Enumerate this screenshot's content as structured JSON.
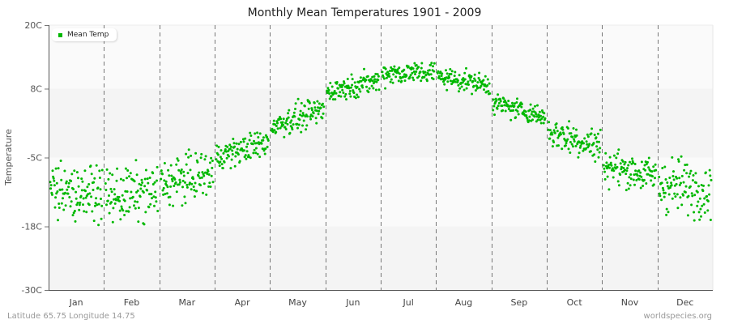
{
  "title": "Monthly Mean Temperatures 1901 - 2009",
  "legend": {
    "label": "Mean Temp",
    "color": "#00b800"
  },
  "footer": {
    "left": "Latitude 65.75 Longitude 14.75",
    "right": "worldspecies.org"
  },
  "chart_data": {
    "type": "scatter",
    "title": "Monthly Mean Temperatures 1901 - 2009",
    "xlabel": "",
    "ylabel": "Temperature",
    "ylim": [
      -30,
      20
    ],
    "yticks": [
      "20C",
      "8C",
      "-5C",
      "-18C",
      "-30C"
    ],
    "ytick_values": [
      20,
      8,
      -5,
      -18,
      -30
    ],
    "categories": [
      "Jan",
      "Feb",
      "Mar",
      "Apr",
      "May",
      "Jun",
      "Jul",
      "Aug",
      "Sep",
      "Oct",
      "Nov",
      "Dec"
    ],
    "grid": {
      "vertical_dashed_month_dividers": true,
      "horizontal_bands": true
    },
    "legend_position": "top-left",
    "series": [
      {
        "name": "Mean Temp",
        "color": "#00b800",
        "points_per_month": 109,
        "approx_ranges": [
          {
            "month": "Jan",
            "min": -19.5,
            "max": -5.0,
            "mean": -11.5
          },
          {
            "month": "Feb",
            "min": -21.5,
            "max": -5.5,
            "mean": -12.0
          },
          {
            "month": "Mar",
            "min": -17.0,
            "max": -3.5,
            "mean": -9.0
          },
          {
            "month": "Apr",
            "min": -7.0,
            "max": 1.0,
            "mean": -3.5
          },
          {
            "month": "May",
            "min": -1.5,
            "max": 6.5,
            "mean": 2.5
          },
          {
            "month": "Jun",
            "min": 6.0,
            "max": 12.5,
            "mean": 8.5
          },
          {
            "month": "Jul",
            "min": 8.0,
            "max": 14.5,
            "mean": 11.0
          },
          {
            "month": "Aug",
            "min": 7.0,
            "max": 13.0,
            "mean": 9.5
          },
          {
            "month": "Sep",
            "min": 1.5,
            "max": 7.5,
            "mean": 4.0
          },
          {
            "month": "Oct",
            "min": -6.5,
            "max": 3.5,
            "mean": -1.5
          },
          {
            "month": "Nov",
            "min": -13.0,
            "max": -3.0,
            "mean": -7.5
          },
          {
            "month": "Dec",
            "min": -20.5,
            "max": -4.5,
            "mean": -10.5
          }
        ]
      }
    ]
  }
}
